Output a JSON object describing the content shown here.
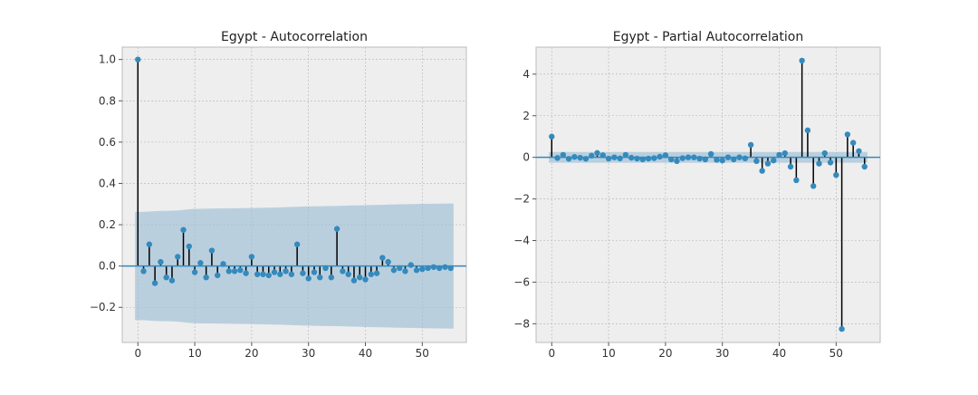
{
  "chart_data": [
    {
      "type": "stem",
      "title": "Egypt - Autocorrelation",
      "xlabel": "",
      "ylabel": "",
      "xlim": [
        -2.75,
        57.75
      ],
      "ylim": [
        -0.37,
        1.06
      ],
      "xticks": [
        0,
        10,
        20,
        30,
        40,
        50
      ],
      "xtick_labels": [
        "0",
        "10",
        "20",
        "30",
        "40",
        "50"
      ],
      "yticks": [
        -0.2,
        0.0,
        0.2,
        0.4,
        0.6,
        0.8,
        1.0
      ],
      "ytick_labels": [
        "−0.2",
        "0.0",
        "0.2",
        "0.4",
        "0.6",
        "0.8",
        "1.0"
      ],
      "grid": true,
      "x": [
        0,
        1,
        2,
        3,
        4,
        5,
        6,
        7,
        8,
        9,
        10,
        11,
        12,
        13,
        14,
        15,
        16,
        17,
        18,
        19,
        20,
        21,
        22,
        23,
        24,
        25,
        26,
        27,
        28,
        29,
        30,
        31,
        32,
        33,
        34,
        35,
        36,
        37,
        38,
        39,
        40,
        41,
        42,
        43,
        44,
        45,
        46,
        47,
        48,
        49,
        50,
        51,
        52,
        53,
        54,
        55
      ],
      "values": [
        1.0,
        -0.025,
        0.105,
        -0.083,
        0.02,
        -0.055,
        -0.07,
        0.045,
        0.175,
        0.095,
        -0.03,
        0.015,
        -0.055,
        0.075,
        -0.045,
        0.01,
        -0.025,
        -0.025,
        -0.02,
        -0.035,
        0.045,
        -0.04,
        -0.04,
        -0.045,
        -0.03,
        -0.04,
        -0.025,
        -0.04,
        0.105,
        -0.035,
        -0.06,
        -0.03,
        -0.055,
        -0.01,
        -0.055,
        0.18,
        -0.025,
        -0.04,
        -0.07,
        -0.055,
        -0.065,
        -0.04,
        -0.035,
        0.04,
        0.02,
        -0.02,
        -0.01,
        -0.025,
        0.005,
        -0.02,
        -0.015,
        -0.01,
        -0.005,
        -0.01,
        -0.005,
        -0.01
      ],
      "confidence_band": {
        "x": [
          0,
          1,
          2,
          3,
          4,
          5,
          6,
          7,
          8,
          9,
          10,
          15,
          20,
          25,
          30,
          35,
          40,
          45,
          50,
          55
        ],
        "upper": [
          0.262,
          0.262,
          0.264,
          0.266,
          0.267,
          0.267,
          0.268,
          0.269,
          0.272,
          0.275,
          0.277,
          0.279,
          0.281,
          0.284,
          0.289,
          0.291,
          0.295,
          0.298,
          0.301,
          0.303
        ],
        "lower": [
          -0.262,
          -0.262,
          -0.264,
          -0.266,
          -0.267,
          -0.267,
          -0.268,
          -0.269,
          -0.272,
          -0.275,
          -0.277,
          -0.279,
          -0.281,
          -0.284,
          -0.289,
          -0.291,
          -0.295,
          -0.298,
          -0.301,
          -0.303
        ]
      },
      "colors": {
        "marker": "#348ABD",
        "stem": "#000000",
        "baseline": "#348ABD",
        "band": "#9ebfd6",
        "plot_bg": "#EEEEEE"
      }
    },
    {
      "type": "stem",
      "title": "Egypt - Partial Autocorrelation",
      "xlabel": "",
      "ylabel": "",
      "xlim": [
        -2.75,
        57.75
      ],
      "ylim": [
        -8.9,
        5.3
      ],
      "xticks": [
        0,
        10,
        20,
        30,
        40,
        50
      ],
      "xtick_labels": [
        "0",
        "10",
        "20",
        "30",
        "40",
        "50"
      ],
      "yticks": [
        -8,
        -6,
        -4,
        -2,
        0,
        2,
        4
      ],
      "ytick_labels": [
        "−8",
        "−6",
        "−4",
        "−2",
        "0",
        "2",
        "4"
      ],
      "grid": true,
      "x": [
        0,
        1,
        2,
        3,
        4,
        5,
        6,
        7,
        8,
        9,
        10,
        11,
        12,
        13,
        14,
        15,
        16,
        17,
        18,
        19,
        20,
        21,
        22,
        23,
        24,
        25,
        26,
        27,
        28,
        29,
        30,
        31,
        32,
        33,
        34,
        35,
        36,
        37,
        38,
        39,
        40,
        41,
        42,
        43,
        44,
        45,
        46,
        47,
        48,
        49,
        50,
        51,
        52,
        53,
        54,
        55
      ],
      "values": [
        1.0,
        -0.03,
        0.12,
        -0.07,
        0.02,
        -0.02,
        -0.07,
        0.08,
        0.21,
        0.1,
        -0.06,
        0.0,
        -0.05,
        0.12,
        -0.02,
        -0.06,
        -0.1,
        -0.06,
        -0.04,
        0.03,
        0.1,
        -0.1,
        -0.18,
        -0.04,
        0.0,
        0.0,
        -0.06,
        -0.1,
        0.16,
        -0.12,
        -0.15,
        0.0,
        -0.1,
        0.0,
        -0.05,
        0.6,
        -0.18,
        -0.65,
        -0.3,
        -0.15,
        0.12,
        0.2,
        -0.45,
        -1.1,
        4.65,
        1.3,
        -1.38,
        -0.3,
        0.2,
        -0.25,
        -0.85,
        -8.25,
        1.1,
        0.7,
        0.3,
        -0.45
      ],
      "confidence_band": {
        "x": [
          0,
          55
        ],
        "upper": [
          0.26,
          0.26
        ],
        "lower": [
          -0.26,
          -0.26
        ]
      },
      "colors": {
        "marker": "#348ABD",
        "stem": "#000000",
        "baseline": "#348ABD",
        "band": "#9ebfd6",
        "plot_bg": "#EEEEEE"
      }
    }
  ]
}
